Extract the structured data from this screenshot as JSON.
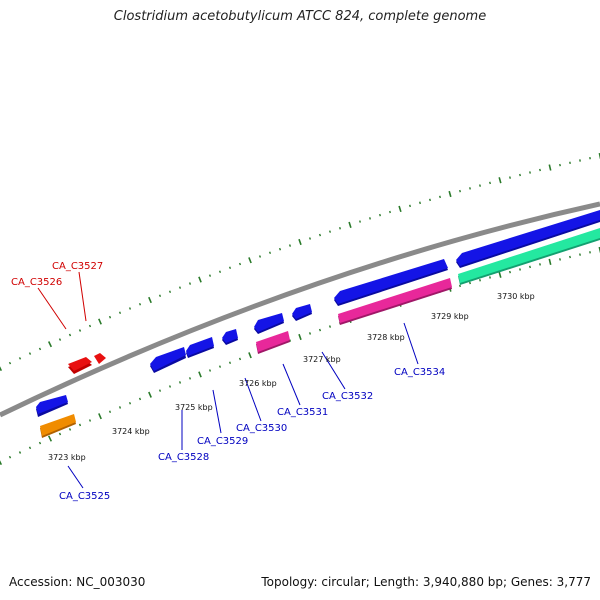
{
  "title": "Clostridium acetobutylicum ATCC 824, complete genome",
  "footer": {
    "accession": "Accession: NC_003030",
    "summary": "Topology: circular; Length: 3,940,880 bp; Genes: 3,777"
  },
  "colors": {
    "backbone": "#8a8a8a",
    "ruler": "#2a7a2a",
    "cds": "#1414e6",
    "rna": "#e8d000",
    "red_gene": "#e81010",
    "orange_gene": "#f08c00",
    "magenta_gene": "#e8289a",
    "teal_gene": "#24e8a0",
    "forward_label": "#d00000",
    "reverse_label": "#0000c0"
  },
  "ruler_labels": [
    "3723 kbp",
    "3724 kbp",
    "3725 kbp",
    "3726 kbp",
    "3727 kbp",
    "3728 kbp",
    "3729 kbp",
    "3730 kbp"
  ],
  "gene_labels": {
    "forward": [
      "CA_C3526",
      "CA_C3527"
    ],
    "reverse": [
      "CA_C3525",
      "CA_C3528",
      "CA_C3529",
      "CA_C3530",
      "CA_C3531",
      "CA_C3532",
      "CA_C3534"
    ]
  }
}
